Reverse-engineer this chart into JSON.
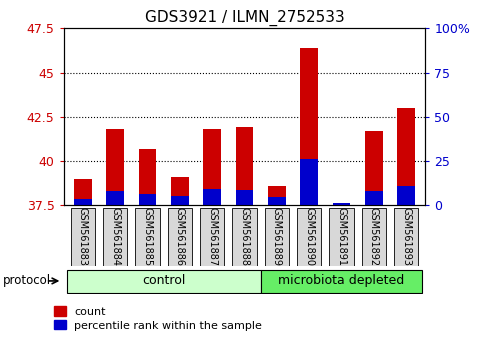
{
  "title": "GDS3921 / ILMN_2752533",
  "samples": [
    "GSM561883",
    "GSM561884",
    "GSM561885",
    "GSM561886",
    "GSM561887",
    "GSM561888",
    "GSM561889",
    "GSM561890",
    "GSM561891",
    "GSM561892",
    "GSM561893"
  ],
  "count_values": [
    39.0,
    41.8,
    40.7,
    39.1,
    41.8,
    41.9,
    38.6,
    46.4,
    37.6,
    41.7,
    43.0
  ],
  "percentile_values": [
    3.5,
    8.0,
    6.5,
    5.0,
    9.0,
    8.5,
    4.5,
    26.0,
    1.5,
    8.0,
    11.0
  ],
  "baseline": 37.5,
  "ylim_left": [
    37.5,
    47.5
  ],
  "ylim_right": [
    0,
    100
  ],
  "yticks_left": [
    37.5,
    40.0,
    42.5,
    45.0,
    47.5
  ],
  "ytick_labels_left": [
    "37.5",
    "40",
    "42.5",
    "45",
    "47.5"
  ],
  "yticks_right": [
    0,
    25,
    50,
    75,
    100
  ],
  "ytick_labels_right": [
    "0",
    "25",
    "50",
    "75",
    "100%"
  ],
  "groups": [
    {
      "label": "control",
      "start": 0,
      "end": 6,
      "color": "#ccffcc"
    },
    {
      "label": "microbiota depleted",
      "start": 6,
      "end": 11,
      "color": "#66ee66"
    }
  ],
  "protocol_label": "protocol",
  "bar_width": 0.55,
  "count_color": "#cc0000",
  "percentile_color": "#0000cc",
  "plot_bg_color": "#ffffff",
  "left_tick_color": "#cc0000",
  "right_tick_color": "#0000cc",
  "grid_ticks": [
    40.0,
    42.5,
    45.0
  ]
}
